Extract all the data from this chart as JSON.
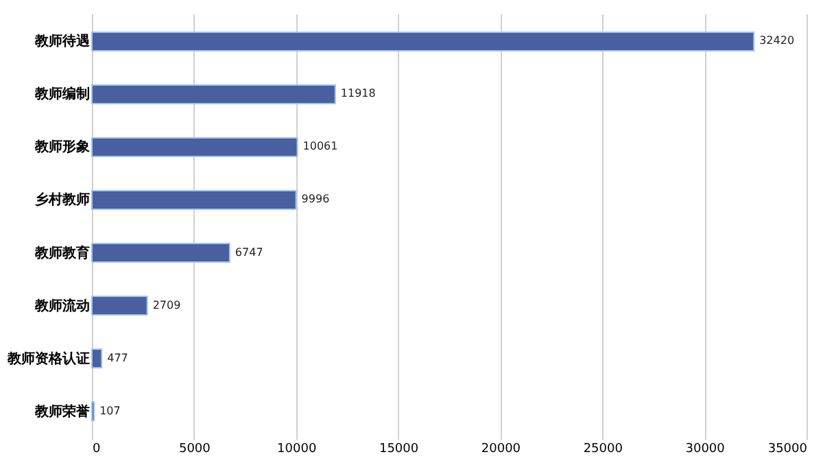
{
  "chart_data": {
    "type": "bar",
    "orientation": "horizontal",
    "categories": [
      "教师待遇",
      "教师编制",
      "教师形象",
      "乡村教师",
      "教师教育",
      "教师流动",
      "教师资格认证",
      "教师荣誉"
    ],
    "values": [
      32420,
      11918,
      10061,
      9996,
      6747,
      2709,
      477,
      107
    ],
    "color": "#4a5fa0",
    "xlim": [
      0,
      35000
    ],
    "xticks": [
      0,
      5000,
      10000,
      15000,
      20000,
      25000,
      30000,
      35000
    ],
    "grid": "x",
    "data_labels": true
  }
}
